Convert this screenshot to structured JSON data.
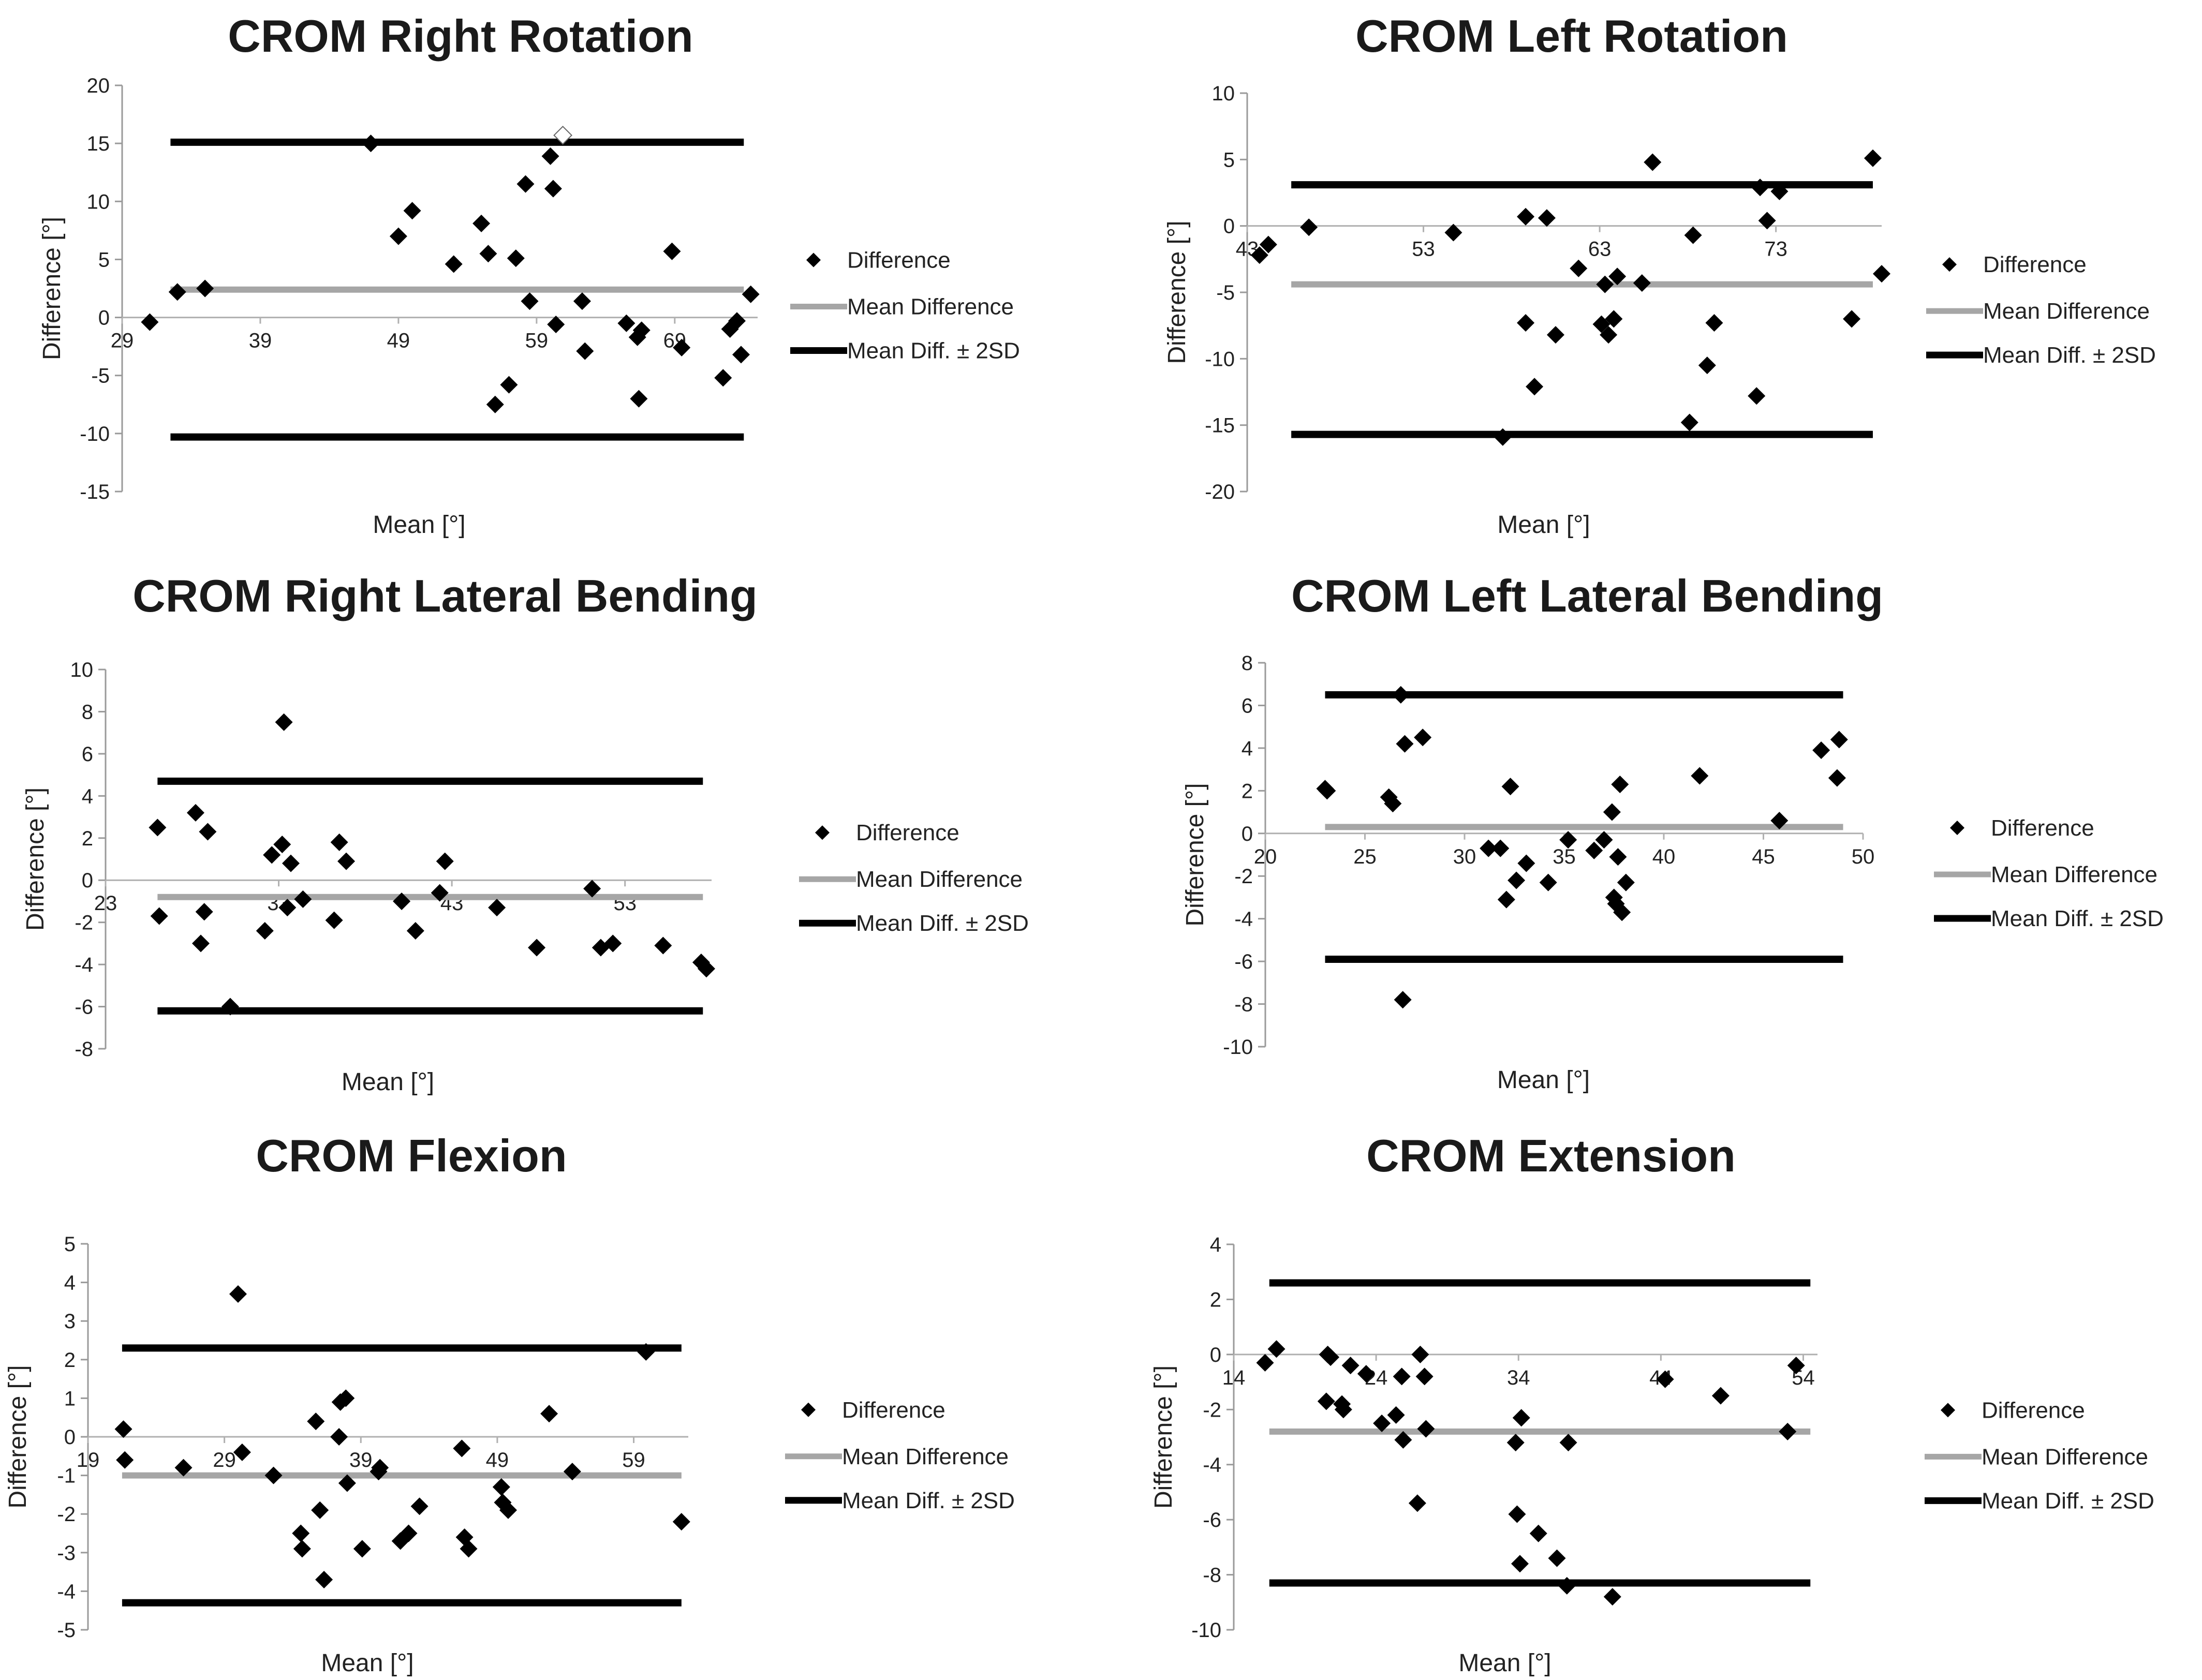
{
  "chart_data": [
    {
      "type": "scatter",
      "title": "CROM Right Rotation",
      "xlabel": "Mean [°]",
      "ylabel": "Difference [°]",
      "xlim": [
        29,
        75
      ],
      "ylim": [
        -15,
        20
      ],
      "xticks": [
        29,
        39,
        49,
        59,
        69
      ],
      "yticks": [
        -15,
        -10,
        -5,
        0,
        5,
        10,
        15,
        20
      ],
      "mean_difference": 2.4,
      "upper_limit": 15.1,
      "lower_limit": -10.3,
      "line_x_range": [
        32.5,
        74
      ],
      "legend": [
        "Difference",
        "Mean Difference",
        "Mean Diff. ± 2SD"
      ],
      "points": [
        [
          31,
          -0.4
        ],
        [
          33,
          2.2
        ],
        [
          35,
          2.5
        ],
        [
          47,
          15
        ],
        [
          49,
          7
        ],
        [
          50,
          9.2
        ],
        [
          53,
          4.6
        ],
        [
          55,
          8.1
        ],
        [
          55.5,
          5.5
        ],
        [
          56,
          -7.5
        ],
        [
          57,
          -5.8
        ],
        [
          57.5,
          5.1
        ],
        [
          58.2,
          11.5
        ],
        [
          58.5,
          1.4
        ],
        [
          60,
          13.9
        ],
        [
          60.2,
          11.1
        ],
        [
          60.4,
          -0.6
        ],
        [
          62.3,
          1.4
        ],
        [
          62.5,
          -2.9
        ],
        [
          65.5,
          -0.5
        ],
        [
          66.3,
          -1.7
        ],
        [
          66.6,
          -1.1
        ],
        [
          66.4,
          -7
        ],
        [
          68.8,
          5.7
        ],
        [
          69.5,
          -2.6
        ],
        [
          72.5,
          -5.2
        ],
        [
          73,
          -1
        ],
        [
          73.5,
          -0.3
        ],
        [
          73.8,
          -3.2
        ],
        [
          74.5,
          2
        ]
      ],
      "hollow_points": [
        [
          60.9,
          15.7
        ]
      ]
    },
    {
      "type": "scatter",
      "title": "CROM Left Rotation",
      "xlabel": "Mean [°]",
      "ylabel": "Difference [°]",
      "xlim": [
        43,
        79
      ],
      "ylim": [
        -20,
        10
      ],
      "xticks": [
        43,
        53,
        63,
        73
      ],
      "yticks": [
        -20,
        -15,
        -10,
        -5,
        0,
        5,
        10
      ],
      "mean_difference": -4.4,
      "upper_limit": 3.1,
      "lower_limit": -15.7,
      "line_x_range": [
        45.5,
        78.5
      ],
      "legend": [
        "Difference",
        "Mean Difference",
        "Mean Diff. ± 2SD"
      ],
      "points": [
        [
          43.7,
          -2.2
        ],
        [
          44.2,
          -1.4
        ],
        [
          46.5,
          -0.1
        ],
        [
          54.7,
          -0.5
        ],
        [
          57.5,
          -15.9
        ],
        [
          58.8,
          0.7
        ],
        [
          58.8,
          -7.3
        ],
        [
          59.3,
          -12.1
        ],
        [
          60,
          0.6
        ],
        [
          60.5,
          -8.2
        ],
        [
          61.8,
          -3.2
        ],
        [
          63.1,
          -7.4
        ],
        [
          63.3,
          -4.4
        ],
        [
          63.5,
          -8.2
        ],
        [
          63.8,
          -7
        ],
        [
          64,
          -3.8
        ],
        [
          65.4,
          -4.3
        ],
        [
          66,
          4.8
        ],
        [
          68.1,
          -14.8
        ],
        [
          68.3,
          -0.7
        ],
        [
          69.1,
          -10.5
        ],
        [
          69.5,
          -7.3
        ],
        [
          71.9,
          -12.8
        ],
        [
          72.1,
          2.9
        ],
        [
          72.5,
          0.4
        ],
        [
          73.2,
          2.6
        ],
        [
          77.3,
          -7
        ],
        [
          78.5,
          5.1
        ],
        [
          79,
          -3.6
        ]
      ]
    },
    {
      "type": "scatter",
      "title": "CROM Right Lateral Bending",
      "xlabel": "Mean [°]",
      "ylabel": "Difference [°]",
      "xlim": [
        23,
        58
      ],
      "ylim": [
        -8,
        10
      ],
      "xticks": [
        23,
        33,
        43,
        53
      ],
      "xtick_labels": [
        "23",
        "33",
        "43",
        "53"
      ],
      "yticks": [
        -8,
        -6,
        -4,
        -2,
        0,
        2,
        4,
        6,
        8,
        10
      ],
      "mean_difference": -0.8,
      "upper_limit": 4.7,
      "lower_limit": -6.2,
      "line_x_range": [
        26,
        57.5
      ],
      "legend": [
        "Difference",
        "Mean Difference",
        "Mean Diff. ± 2SD"
      ],
      "points": [
        [
          26,
          2.5
        ],
        [
          26.1,
          -1.7
        ],
        [
          28.2,
          3.2
        ],
        [
          28.5,
          -3
        ],
        [
          28.7,
          -1.5
        ],
        [
          28.9,
          2.3
        ],
        [
          30.2,
          -6
        ],
        [
          32.2,
          -2.4
        ],
        [
          32.6,
          1.2
        ],
        [
          33.2,
          1.7
        ],
        [
          33.3,
          7.5
        ],
        [
          33.5,
          -1.3
        ],
        [
          33.7,
          0.8
        ],
        [
          34.4,
          -0.9
        ],
        [
          36.2,
          -1.9
        ],
        [
          36.5,
          1.8
        ],
        [
          36.9,
          0.9
        ],
        [
          40.1,
          -1
        ],
        [
          40.9,
          -2.4
        ],
        [
          42.3,
          -0.6
        ],
        [
          42.6,
          0.9
        ],
        [
          45.6,
          -1.3
        ],
        [
          47.9,
          -3.2
        ],
        [
          51.1,
          -0.4
        ],
        [
          51.6,
          -3.2
        ],
        [
          52.3,
          -3
        ],
        [
          55.2,
          -3.1
        ],
        [
          57.4,
          -3.9
        ],
        [
          57.7,
          -4.2
        ]
      ]
    },
    {
      "type": "scatter",
      "title": "CROM Left Lateral Bending",
      "xlabel": "Mean [°]",
      "ylabel": "Difference [°]",
      "xlim": [
        20,
        50
      ],
      "ylim": [
        -10,
        8
      ],
      "xticks": [
        20,
        25,
        30,
        35,
        40,
        45,
        50
      ],
      "yticks": [
        -10,
        -8,
        -6,
        -4,
        -2,
        0,
        2,
        4,
        6,
        8
      ],
      "mean_difference": 0.3,
      "upper_limit": 6.5,
      "lower_limit": -5.9,
      "line_x_range": [
        23,
        49
      ],
      "legend": [
        "Difference",
        "Mean Difference",
        "Mean Diff. ± 2SD"
      ],
      "points": [
        [
          23,
          2.1
        ],
        [
          23.1,
          2
        ],
        [
          26.2,
          1.7
        ],
        [
          26.4,
          1.4
        ],
        [
          26.8,
          6.5
        ],
        [
          26.9,
          -7.8
        ],
        [
          27,
          4.2
        ],
        [
          27.9,
          4.5
        ],
        [
          31.2,
          -0.7
        ],
        [
          31.8,
          -0.7
        ],
        [
          32.1,
          -3.1
        ],
        [
          32.3,
          2.2
        ],
        [
          32.6,
          -2.2
        ],
        [
          33.1,
          -1.4
        ],
        [
          34.2,
          -2.3
        ],
        [
          35.2,
          -0.3
        ],
        [
          36.5,
          -0.8
        ],
        [
          37,
          -0.3
        ],
        [
          37.4,
          1
        ],
        [
          37.5,
          -3
        ],
        [
          37.6,
          -3.3
        ],
        [
          37.7,
          -1.1
        ],
        [
          37.8,
          2.3
        ],
        [
          37.9,
          -3.7
        ],
        [
          38.1,
          -2.3
        ],
        [
          41.8,
          2.7
        ],
        [
          45.8,
          0.6
        ],
        [
          47.9,
          3.9
        ],
        [
          48.7,
          2.6
        ],
        [
          48.8,
          4.4
        ]
      ]
    },
    {
      "type": "scatter",
      "title": "CROM Flexion",
      "xlabel": "Mean [°]",
      "ylabel": "Difference [°]",
      "xlim": [
        19,
        63
      ],
      "ylim": [
        -5,
        5
      ],
      "xticks": [
        19,
        29,
        39,
        49,
        59
      ],
      "yticks": [
        -5,
        -4,
        -3,
        -2,
        -1,
        0,
        1,
        2,
        3,
        4,
        5
      ],
      "mean_difference": -1,
      "upper_limit": 2.3,
      "lower_limit": -4.3,
      "line_x_range": [
        21.5,
        62.5
      ],
      "legend": [
        "Difference",
        "Mean Difference",
        "Mean Diff. ± 2SD"
      ],
      "points": [
        [
          21.6,
          0.2
        ],
        [
          21.7,
          -0.6
        ],
        [
          26,
          -0.8
        ],
        [
          30,
          3.7
        ],
        [
          30.3,
          -0.4
        ],
        [
          32.6,
          -1
        ],
        [
          34.6,
          -2.5
        ],
        [
          34.7,
          -2.9
        ],
        [
          35.7,
          0.4
        ],
        [
          36,
          -1.9
        ],
        [
          36.3,
          -3.7
        ],
        [
          37.4,
          0
        ],
        [
          37.5,
          0.9
        ],
        [
          37.9,
          1
        ],
        [
          38,
          -1.2
        ],
        [
          39.1,
          -2.9
        ],
        [
          40.3,
          -0.9
        ],
        [
          40.4,
          -0.8
        ],
        [
          41.9,
          -2.7
        ],
        [
          42.5,
          -2.5
        ],
        [
          43.3,
          -1.8
        ],
        [
          46.4,
          -0.3
        ],
        [
          46.6,
          -2.6
        ],
        [
          46.9,
          -2.9
        ],
        [
          49.3,
          -1.3
        ],
        [
          49.4,
          -1.7
        ],
        [
          49.8,
          -1.9
        ],
        [
          52.8,
          0.6
        ],
        [
          54.5,
          -0.9
        ],
        [
          59.9,
          2.2
        ],
        [
          62.5,
          -2.2
        ]
      ]
    },
    {
      "type": "scatter",
      "title": "CROM Extension",
      "xlabel": "Mean [°]",
      "ylabel": "Difference [°]",
      "xlim": [
        14,
        55
      ],
      "ylim": [
        -10,
        4
      ],
      "xticks": [
        14,
        24,
        34,
        44,
        54
      ],
      "yticks": [
        -10,
        -8,
        -6,
        -4,
        -2,
        0,
        2,
        4
      ],
      "mean_difference": -2.8,
      "upper_limit": 2.6,
      "lower_limit": -8.3,
      "line_x_range": [
        16.5,
        54.5
      ],
      "legend": [
        "Difference",
        "Mean Difference",
        "Mean Diff. ± 2SD"
      ],
      "points": [
        [
          16.2,
          -0.3
        ],
        [
          17,
          0.2
        ],
        [
          20.5,
          -1.7
        ],
        [
          20.6,
          0
        ],
        [
          20.8,
          -0.1
        ],
        [
          21.6,
          -1.8
        ],
        [
          21.7,
          -2
        ],
        [
          22.2,
          -0.4
        ],
        [
          23.3,
          -0.7
        ],
        [
          24.4,
          -2.5
        ],
        [
          25.4,
          -2.2
        ],
        [
          25.8,
          -0.8
        ],
        [
          25.9,
          -3.1
        ],
        [
          26.9,
          -5.4
        ],
        [
          27.1,
          0
        ],
        [
          27.4,
          -0.8
        ],
        [
          27.5,
          -2.7
        ],
        [
          33.8,
          -3.2
        ],
        [
          33.9,
          -5.8
        ],
        [
          34.1,
          -7.6
        ],
        [
          34.2,
          -2.3
        ],
        [
          35.4,
          -6.5
        ],
        [
          36.7,
          -7.4
        ],
        [
          37.4,
          -8.4
        ],
        [
          37.5,
          -3.2
        ],
        [
          40.6,
          -8.8
        ],
        [
          44.3,
          -0.9
        ],
        [
          48.2,
          -1.5
        ],
        [
          52.9,
          -2.8
        ],
        [
          53.5,
          -0.4
        ]
      ]
    }
  ]
}
